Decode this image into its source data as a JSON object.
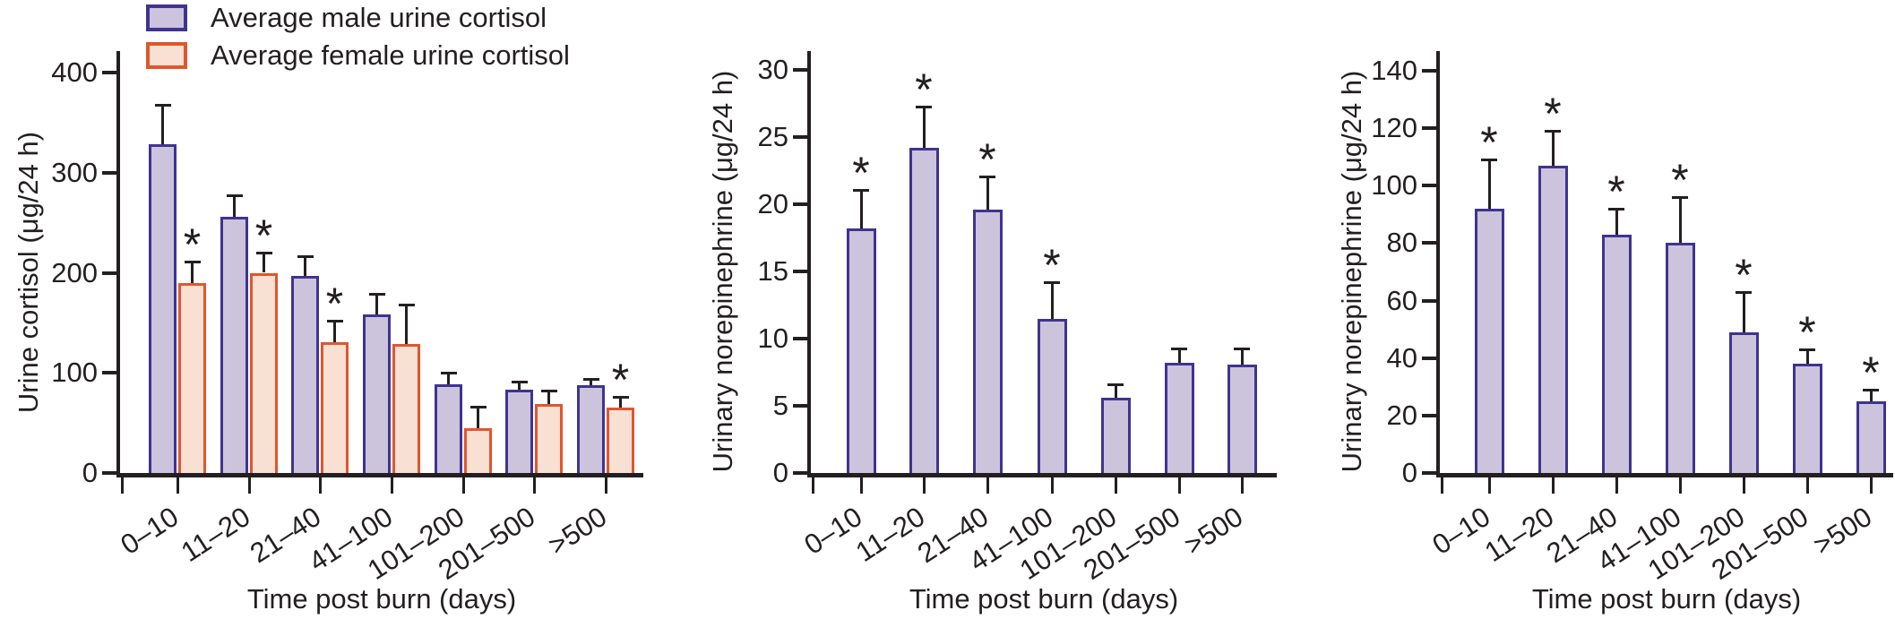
{
  "figure": {
    "background": "#ffffff",
    "axis_color": "#231f20",
    "significance_marker": "*",
    "series_styles": {
      "male": {
        "fill": "#cbc4dc",
        "stroke": "#40338f"
      },
      "female": {
        "fill": "#f8e1d2",
        "stroke": "#e2552e"
      }
    }
  },
  "chart_data": [
    {
      "type": "bar",
      "panel": "left",
      "title": "",
      "ylabel": "Urine cortisol (μg/24 h)",
      "xlabel": "Time post burn (days)",
      "ylim": [
        0,
        400
      ],
      "yticks": [
        0,
        100,
        200,
        300,
        400
      ],
      "grid": false,
      "legend_position": "top-left",
      "categories": [
        "0–10",
        "11–20",
        "21–40",
        "41–100",
        "101–200",
        "201–500",
        ">500"
      ],
      "series": [
        {
          "name": "Average male urine cortisol",
          "key": "male",
          "values": [
            328,
            256,
            197,
            158,
            89,
            83,
            88
          ],
          "errors_plus": [
            40,
            21,
            20,
            21,
            11,
            8,
            6
          ],
          "significant": [
            false,
            false,
            false,
            false,
            false,
            false,
            false
          ]
        },
        {
          "name": "Average female urine cortisol",
          "key": "female",
          "values": [
            190,
            200,
            131,
            129,
            45,
            69,
            65
          ],
          "errors_plus": [
            21,
            20,
            21,
            39,
            21,
            13,
            11
          ],
          "significant": [
            true,
            true,
            true,
            false,
            false,
            false,
            true
          ]
        }
      ]
    },
    {
      "type": "bar",
      "panel": "middle",
      "title": "",
      "ylabel": "Urinary norepinephrine (μg/24 h)",
      "xlabel": "Time post burn (days)",
      "ylim": [
        0,
        30
      ],
      "yticks": [
        0,
        5,
        10,
        15,
        20,
        25,
        30
      ],
      "grid": false,
      "legend_position": "none",
      "categories": [
        "0–10",
        "11–20",
        "21–40",
        "41–100",
        "101–200",
        "201–500",
        ">500"
      ],
      "series": [
        {
          "key": "male",
          "values": [
            18.2,
            24.2,
            19.6,
            11.5,
            5.6,
            8.2,
            8.1
          ],
          "errors_plus": [
            2.9,
            3.1,
            2.5,
            2.7,
            1.0,
            1.1,
            1.2
          ],
          "significant": [
            true,
            true,
            true,
            true,
            false,
            false,
            false
          ]
        }
      ]
    },
    {
      "type": "bar",
      "panel": "right",
      "title": "",
      "ylabel": "Urinary norepinephrine (μg/24 h)",
      "xlabel": "Time post burn (days)",
      "ylim": [
        0,
        140
      ],
      "yticks": [
        0,
        20,
        40,
        60,
        80,
        100,
        120,
        140
      ],
      "grid": false,
      "legend_position": "none",
      "categories": [
        "0–10",
        "11–20",
        "21–40",
        "41–100",
        "101–200",
        "201–500",
        ">500"
      ],
      "series": [
        {
          "key": "male",
          "values": [
            92,
            107,
            83,
            80,
            49,
            38,
            25
          ],
          "errors_plus": [
            17,
            12,
            9,
            16,
            14,
            5,
            4
          ],
          "significant": [
            true,
            true,
            true,
            true,
            true,
            true,
            true
          ]
        }
      ]
    }
  ]
}
